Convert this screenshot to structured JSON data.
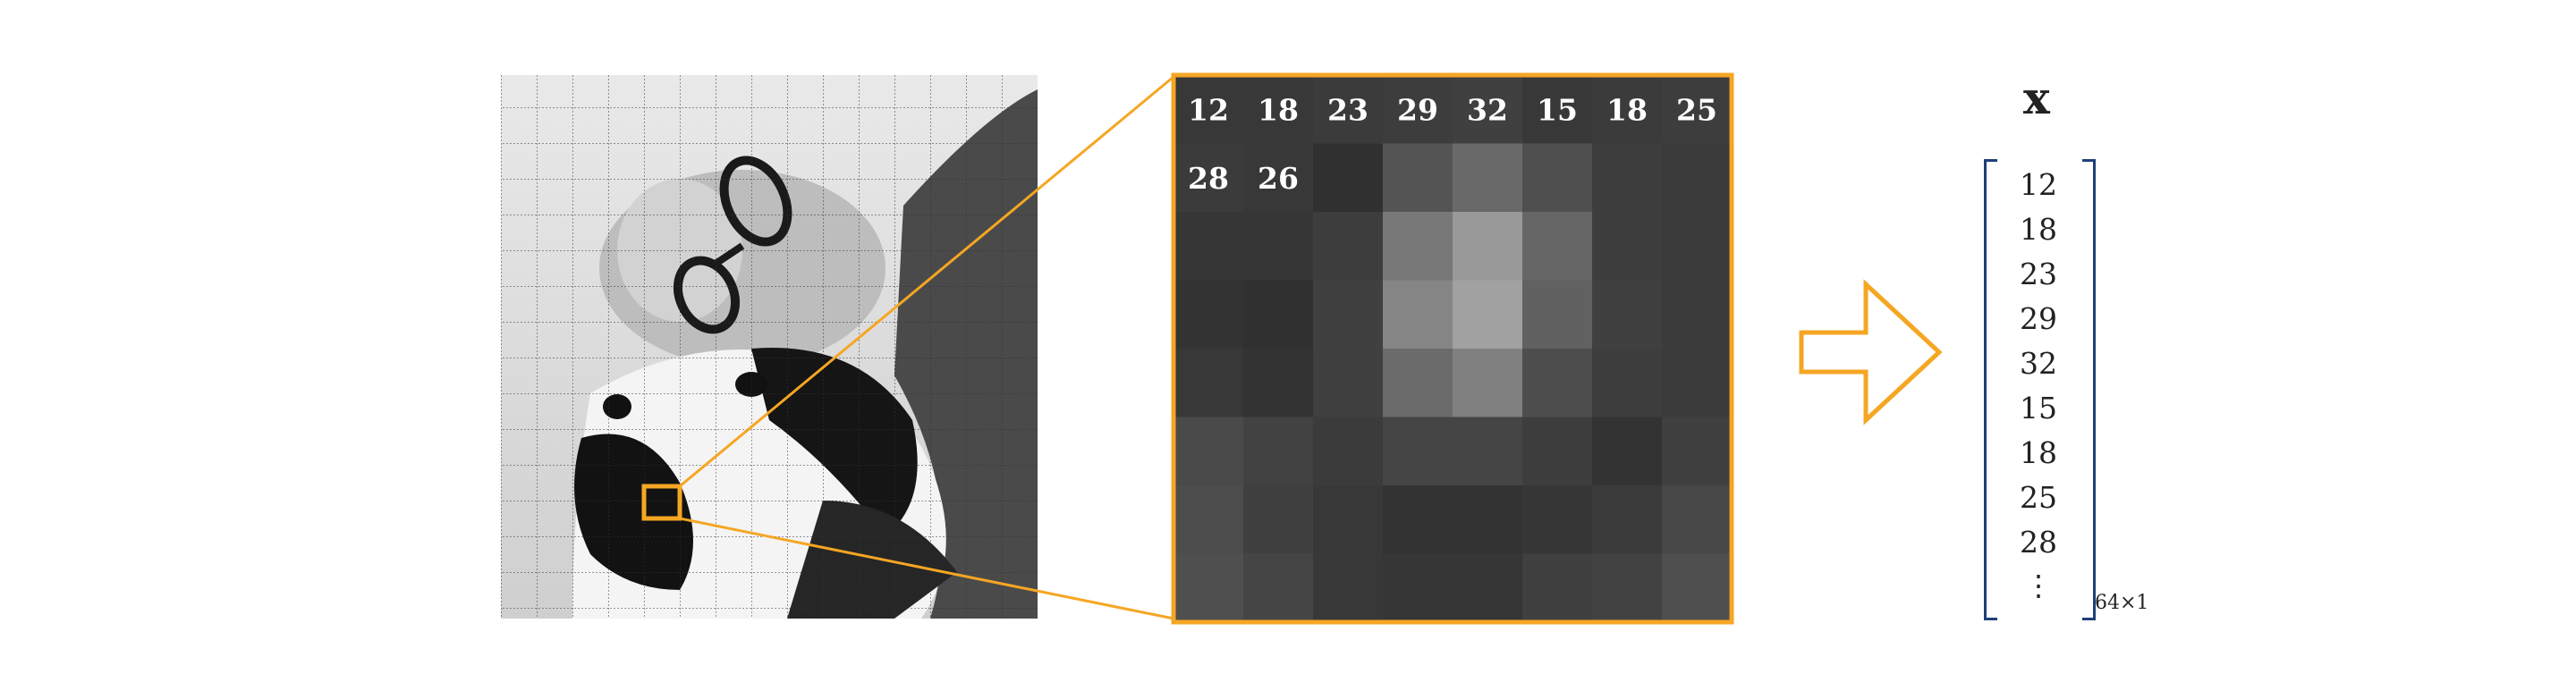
{
  "pixel_grid": {
    "labels": [
      "12",
      "18",
      "23",
      "29",
      "32",
      "15",
      "18",
      "25",
      "28",
      "26"
    ],
    "intensity": [
      [
        0.22,
        0.22,
        0.23,
        0.24,
        0.25,
        0.22,
        0.23,
        0.24
      ],
      [
        0.23,
        0.22,
        0.19,
        0.33,
        0.41,
        0.31,
        0.24,
        0.23
      ],
      [
        0.21,
        0.21,
        0.24,
        0.47,
        0.6,
        0.4,
        0.24,
        0.23
      ],
      [
        0.2,
        0.19,
        0.25,
        0.52,
        0.63,
        0.38,
        0.25,
        0.23
      ],
      [
        0.22,
        0.2,
        0.25,
        0.42,
        0.5,
        0.3,
        0.24,
        0.23
      ],
      [
        0.29,
        0.26,
        0.23,
        0.27,
        0.27,
        0.24,
        0.2,
        0.25
      ],
      [
        0.3,
        0.25,
        0.22,
        0.2,
        0.2,
        0.21,
        0.23,
        0.28
      ],
      [
        0.31,
        0.27,
        0.22,
        0.21,
        0.21,
        0.25,
        0.26,
        0.31
      ]
    ]
  },
  "vector": {
    "title": "x",
    "values": [
      "12",
      "18",
      "23",
      "29",
      "32",
      "15",
      "18",
      "25",
      "28"
    ],
    "ellipsis": "⋮",
    "dimension": "64×1"
  },
  "colors": {
    "accent": "#f5a623",
    "bracket": "#1f3f78"
  }
}
